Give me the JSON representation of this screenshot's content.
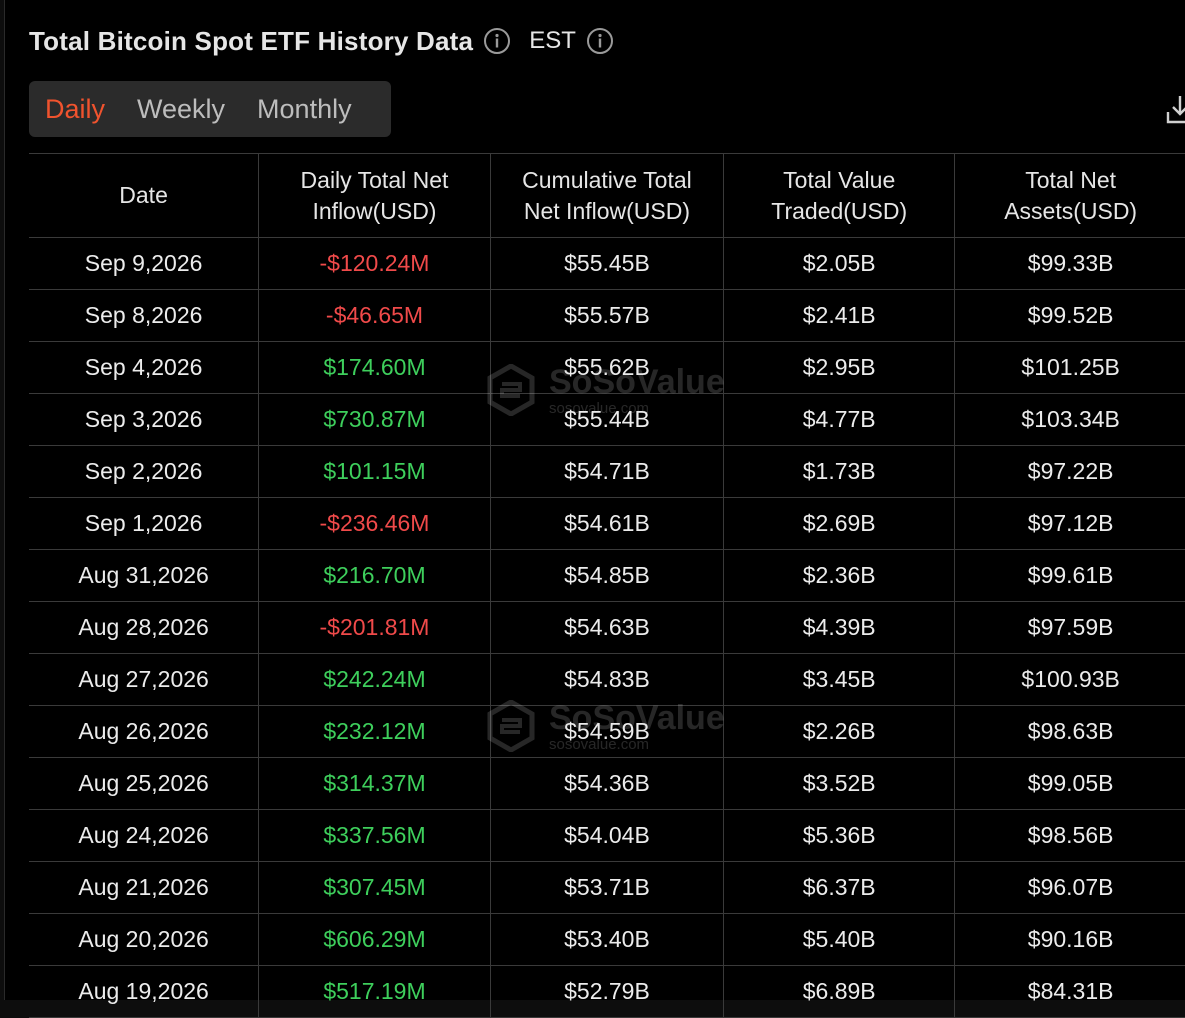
{
  "header": {
    "title": "Total Bitcoin Spot ETF History Data",
    "timezone": "EST"
  },
  "tabs": [
    {
      "label": "Daily",
      "active": true
    },
    {
      "label": "Weekly",
      "active": false
    },
    {
      "label": "Monthly",
      "active": false
    }
  ],
  "table": {
    "columns": [
      "Date",
      "Daily Total Net Inflow(USD)",
      "Cumulative Total Net Inflow(USD)",
      "Total Value Traded(USD)",
      "Total Net Assets(USD)"
    ],
    "rows": [
      [
        "Sep 9,2026",
        "-$120.24M",
        "$55.45B",
        "$2.05B",
        "$99.33B"
      ],
      [
        "Sep 8,2026",
        "-$46.65M",
        "$55.57B",
        "$2.41B",
        "$99.52B"
      ],
      [
        "Sep 4,2026",
        "$174.60M",
        "$55.62B",
        "$2.95B",
        "$101.25B"
      ],
      [
        "Sep 3,2026",
        "$730.87M",
        "$55.44B",
        "$4.77B",
        "$103.34B"
      ],
      [
        "Sep 2,2026",
        "$101.15M",
        "$54.71B",
        "$1.73B",
        "$97.22B"
      ],
      [
        "Sep 1,2026",
        "-$236.46M",
        "$54.61B",
        "$2.69B",
        "$97.12B"
      ],
      [
        "Aug 31,2026",
        "$216.70M",
        "$54.85B",
        "$2.36B",
        "$99.61B"
      ],
      [
        "Aug 28,2026",
        "-$201.81M",
        "$54.63B",
        "$4.39B",
        "$97.59B"
      ],
      [
        "Aug 27,2026",
        "$242.24M",
        "$54.83B",
        "$3.45B",
        "$100.93B"
      ],
      [
        "Aug 26,2026",
        "$232.12M",
        "$54.59B",
        "$2.26B",
        "$98.63B"
      ],
      [
        "Aug 25,2026",
        "$314.37M",
        "$54.36B",
        "$3.52B",
        "$99.05B"
      ],
      [
        "Aug 24,2026",
        "$337.56M",
        "$54.04B",
        "$5.36B",
        "$98.56B"
      ],
      [
        "Aug 21,2026",
        "$307.45M",
        "$53.71B",
        "$6.37B",
        "$96.07B"
      ],
      [
        "Aug 20,2026",
        "$606.29M",
        "$53.40B",
        "$5.40B",
        "$90.16B"
      ],
      [
        "Aug 19,2026",
        "$517.19M",
        "$52.79B",
        "$6.89B",
        "$84.31B"
      ]
    ]
  },
  "watermark": {
    "brand": "SoSoValue",
    "url": "sosovalue.com"
  },
  "colors": {
    "accent": "#f0532e",
    "positive": "#3ecf5c",
    "negative": "#f04a4a",
    "background": "#000000"
  }
}
